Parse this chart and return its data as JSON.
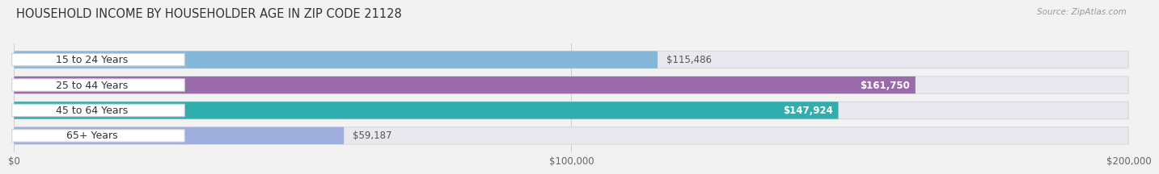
{
  "title": "HOUSEHOLD INCOME BY HOUSEHOLDER AGE IN ZIP CODE 21128",
  "source": "Source: ZipAtlas.com",
  "categories": [
    "15 to 24 Years",
    "25 to 44 Years",
    "45 to 64 Years",
    "65+ Years"
  ],
  "values": [
    115486,
    161750,
    147924,
    59187
  ],
  "bar_colors": [
    "#85b8d8",
    "#9b6aaa",
    "#30adad",
    "#a0aedd"
  ],
  "value_labels": [
    "$115,486",
    "$161,750",
    "$147,924",
    "$59,187"
  ],
  "value_inside": [
    false,
    true,
    true,
    false
  ],
  "xlim": [
    0,
    200000
  ],
  "xticks": [
    0,
    100000,
    200000
  ],
  "xtick_labels": [
    "$0",
    "$100,000",
    "$200,000"
  ],
  "bg_color": "#f2f2f2",
  "bar_bg_color": "#e8e8ee",
  "bar_bg_border": "#d8d8e0",
  "title_fontsize": 10.5,
  "label_fontsize": 9,
  "value_fontsize": 8.5,
  "tick_fontsize": 8.5,
  "bar_height": 0.68,
  "label_pill_color": "#ffffff",
  "label_pill_border": "#d0d0d8"
}
